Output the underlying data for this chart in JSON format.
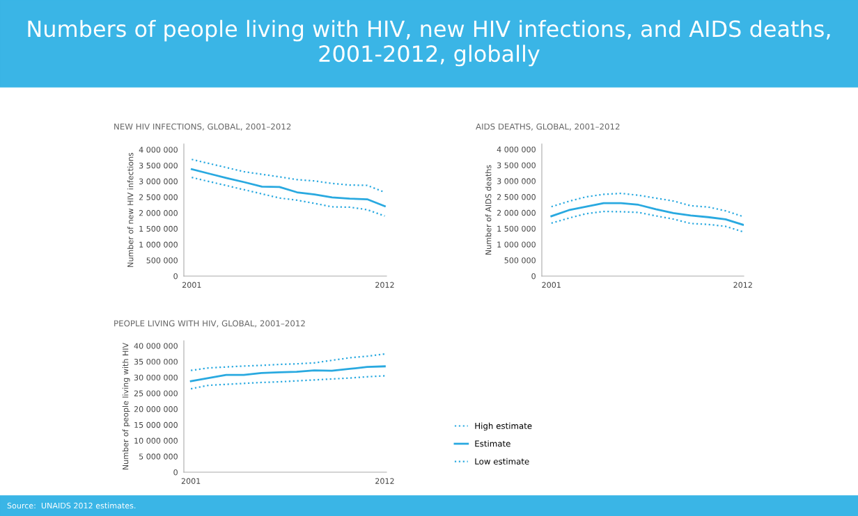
{
  "chart_data": [
    {
      "type": "line",
      "title": "NEW HIV INFECTIONS, GLOBAL, 2001–2012",
      "ylabel": "Number of new HIV infections",
      "annotations": [
        "Numbers of people living with HIV, new HIV infections, and AIDS deaths, 2001-2012, globally"
      ],
      "x": [
        2001,
        2002,
        2003,
        2004,
        2005,
        2006,
        2007,
        2008,
        2009,
        2010,
        2011,
        2012
      ],
      "xlim": [
        2000.55,
        2012.1
      ],
      "xticks": [
        2001,
        2012
      ],
      "ylim": [
        0,
        4180000
      ],
      "yticks": [
        {
          "value": 0,
          "label": "0"
        },
        {
          "value": 500000,
          "label": "500 000"
        },
        {
          "value": 1000000,
          "label": "1 000 000"
        },
        {
          "value": 1500000,
          "label": "1 500 000"
        },
        {
          "value": 2000000,
          "label": "2 000 000"
        },
        {
          "value": 2500000,
          "label": "2 500 000"
        },
        {
          "value": 3000000,
          "label": "3 000 000"
        },
        {
          "value": 3500000,
          "label": "3 500 000"
        },
        {
          "value": 4000000,
          "label": "4 000 000"
        }
      ],
      "grid": false,
      "series": [
        {
          "color": "#29a9e0",
          "line_style": "dotted",
          "values": [
            3690000,
            3560000,
            3430000,
            3300000,
            3220000,
            3140000,
            3050000,
            3010000,
            2930000,
            2880000,
            2870000,
            2650000
          ]
        },
        {
          "color": "#29a9e0",
          "line_style": "solid",
          "values": [
            3380000,
            3240000,
            3100000,
            2970000,
            2830000,
            2820000,
            2650000,
            2580000,
            2490000,
            2450000,
            2430000,
            2210000
          ]
        },
        {
          "color": "#29a9e0",
          "line_style": "dotted",
          "values": [
            3120000,
            2990000,
            2860000,
            2730000,
            2600000,
            2470000,
            2400000,
            2300000,
            2190000,
            2180000,
            2100000,
            1900000
          ]
        }
      ]
    },
    {
      "type": "line",
      "title": "AIDS DEATHS, GLOBAL, 2001–2012",
      "ylabel": "Number of AIDS deaths",
      "x": [
        2001,
        2002,
        2003,
        2004,
        2005,
        2006,
        2007,
        2008,
        2009,
        2010,
        2011,
        2012
      ],
      "xlim": [
        2000.45,
        2012.05
      ],
      "xticks": [
        2001,
        2012
      ],
      "ylim": [
        0,
        4170000
      ],
      "yticks": [
        {
          "value": 0,
          "label": "0"
        },
        {
          "value": 500000,
          "label": "500 000"
        },
        {
          "value": 1000000,
          "label": "1 000 000"
        },
        {
          "value": 1500000,
          "label": "1 500 000"
        },
        {
          "value": 2000000,
          "label": "2 000 000"
        },
        {
          "value": 2500000,
          "label": "2 500 000"
        },
        {
          "value": 3000000,
          "label": "3 000 000"
        },
        {
          "value": 3500000,
          "label": "3 500 000"
        },
        {
          "value": 4000000,
          "label": "4 000 000"
        }
      ],
      "grid": false,
      "series": [
        {
          "color": "#29a9e0",
          "line_style": "dotted",
          "values": [
            2190000,
            2360000,
            2500000,
            2580000,
            2610000,
            2550000,
            2460000,
            2370000,
            2220000,
            2180000,
            2060000,
            1880000
          ]
        },
        {
          "color": "#29a9e0",
          "line_style": "solid",
          "values": [
            1890000,
            2080000,
            2190000,
            2300000,
            2300000,
            2250000,
            2110000,
            1990000,
            1910000,
            1860000,
            1790000,
            1620000
          ]
        },
        {
          "color": "#29a9e0",
          "line_style": "dotted",
          "values": [
            1670000,
            1830000,
            1970000,
            2040000,
            2030000,
            2010000,
            1900000,
            1800000,
            1660000,
            1630000,
            1570000,
            1400000
          ]
        }
      ]
    },
    {
      "type": "line",
      "title": "PEOPLE LIVING WITH HIV, GLOBAL, 2001–2012",
      "ylabel": "Number of people living with HIV",
      "annotations": [
        "Source:  UNAIDS 2012 estimates."
      ],
      "x": [
        2001,
        2002,
        2003,
        2004,
        2005,
        2006,
        2007,
        2008,
        2009,
        2010,
        2011,
        2012
      ],
      "xlim": [
        2000.6,
        2012.1
      ],
      "xticks": [
        2001,
        2012
      ],
      "ylim": [
        0,
        41600000
      ],
      "yticks": [
        {
          "value": 0,
          "label": "0"
        },
        {
          "value": 5000000,
          "label": "5 000 000"
        },
        {
          "value": 10000000,
          "label": "10 000 000"
        },
        {
          "value": 15000000,
          "label": "15 000 000"
        },
        {
          "value": 20000000,
          "label": "20 000 000"
        },
        {
          "value": 25000000,
          "label": "25 000 000"
        },
        {
          "value": 30000000,
          "label": "30 000 000"
        },
        {
          "value": 35000000,
          "label": "35 000 000"
        },
        {
          "value": 40000000,
          "label": "40 000 000"
        }
      ],
      "grid": false,
      "legend": "right",
      "series": [
        {
          "name": "High estimate",
          "color": "#29a9e0",
          "line_style": "dotted",
          "values": [
            32200000,
            33000000,
            33300000,
            33600000,
            33800000,
            34100000,
            34300000,
            34600000,
            35400000,
            36200000,
            36700000,
            37400000
          ]
        },
        {
          "name": "Estimate",
          "color": "#29a9e0",
          "line_style": "solid",
          "values": [
            28800000,
            29800000,
            30800000,
            30800000,
            31400000,
            31600000,
            31800000,
            32200000,
            32100000,
            32700000,
            33300000,
            33500000
          ]
        },
        {
          "name": "Low estimate",
          "color": "#29a9e0",
          "line_style": "dotted",
          "values": [
            26400000,
            27500000,
            27800000,
            28100000,
            28400000,
            28600000,
            28900000,
            29200000,
            29500000,
            29800000,
            30200000,
            30500000
          ]
        }
      ]
    }
  ]
}
